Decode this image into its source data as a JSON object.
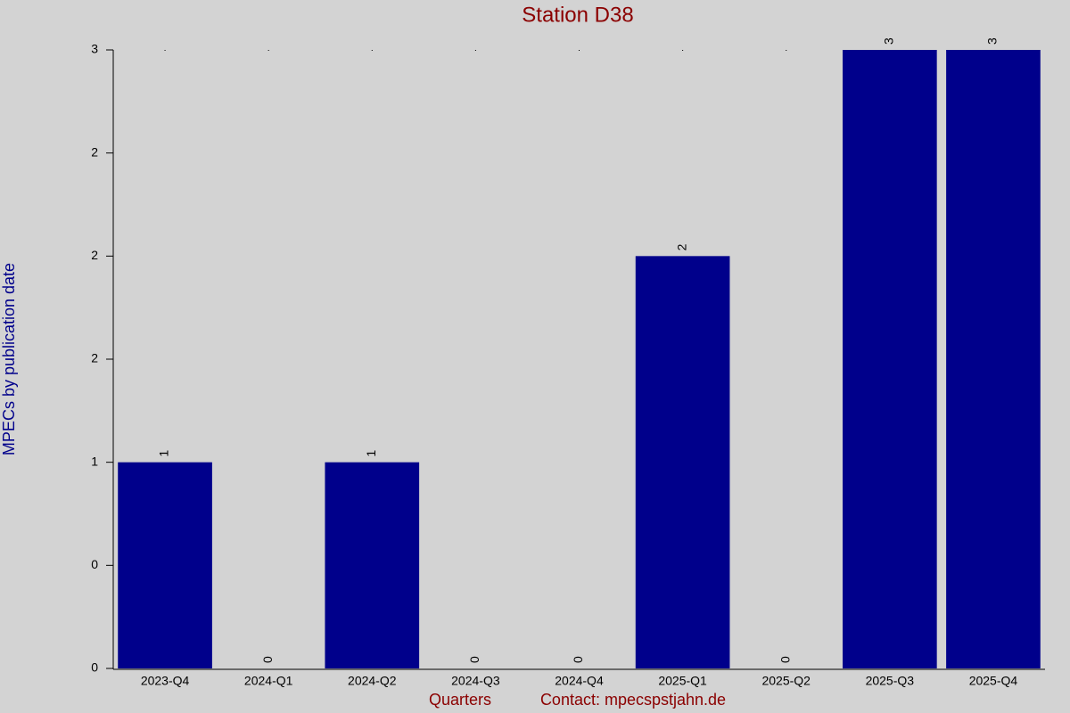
{
  "chart_data": {
    "type": "bar",
    "title": "Station D38",
    "x_label": "Quarters",
    "contact": "Contact: mpecspstjahn.de",
    "y_label": "MPECs by publication date",
    "categories": [
      "2023-Q4",
      "2024-Q1",
      "2024-Q2",
      "2024-Q3",
      "2024-Q4",
      "2025-Q1",
      "2025-Q2",
      "2025-Q3",
      "2025-Q4"
    ],
    "values": [
      1,
      0,
      1,
      0,
      0,
      2,
      0,
      3,
      3
    ],
    "color": "#00008b",
    "ylim": [
      0,
      3
    ],
    "yticks": [
      0,
      {
        "value": 0.5,
        "label": "0"
      },
      1,
      {
        "value": 1.5,
        "label": "2"
      },
      2,
      {
        "value": 2.5,
        "label": "2"
      },
      3
    ]
  }
}
